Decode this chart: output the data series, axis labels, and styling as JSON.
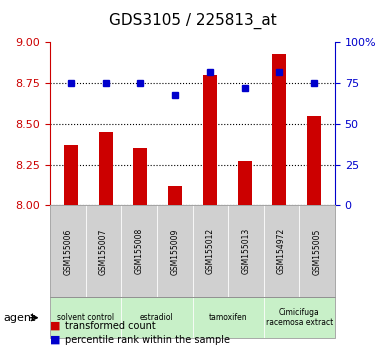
{
  "title": "GDS3105 / 225813_at",
  "samples": [
    "GSM155006",
    "GSM155007",
    "GSM155008",
    "GSM155009",
    "GSM155012",
    "GSM155013",
    "GSM154972",
    "GSM155005"
  ],
  "red_values": [
    8.37,
    8.45,
    8.35,
    8.12,
    8.8,
    8.27,
    8.93,
    8.55
  ],
  "blue_values": [
    75,
    75,
    75,
    68,
    82,
    72,
    82,
    75
  ],
  "ymin": 8.0,
  "ymax": 9.0,
  "yticks": [
    8.0,
    8.25,
    8.5,
    8.75,
    9.0
  ],
  "y2min": 0,
  "y2max": 100,
  "y2ticks": [
    0,
    25,
    50,
    75,
    100
  ],
  "groups": [
    {
      "label": "solvent control",
      "start": 0,
      "end": 2
    },
    {
      "label": "estradiol",
      "start": 2,
      "end": 4
    },
    {
      "label": "tamoxifen",
      "start": 4,
      "end": 6
    },
    {
      "label": "Cimicifuga\nracemosa extract",
      "start": 6,
      "end": 8
    }
  ],
  "bar_color": "#cc0000",
  "dot_color": "#0000cc",
  "bg_sample": "#d0d0d0",
  "bg_group_light": "#c8f0c8",
  "left_tick_color": "#cc0000",
  "right_tick_color": "#0000cc",
  "agent_text": "agent",
  "legend_red": "transformed count",
  "legend_blue": "percentile rank within the sample"
}
